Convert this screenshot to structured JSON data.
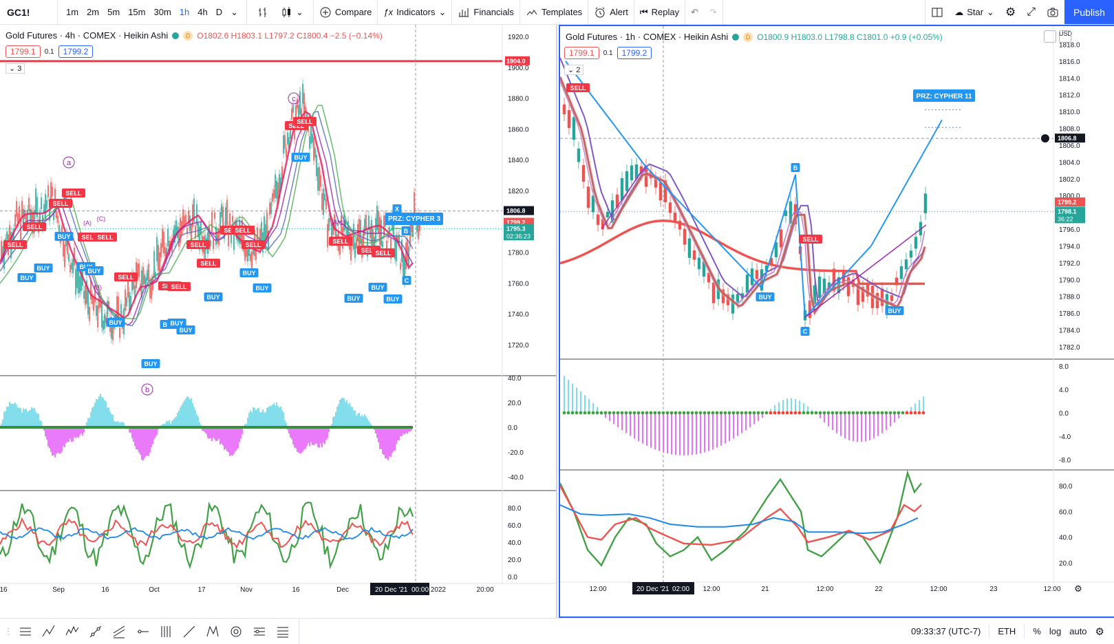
{
  "toolbar": {
    "symbol": "GC1!",
    "timeframes": [
      "1m",
      "2m",
      "5m",
      "15m",
      "30m",
      "1h",
      "4h",
      "D"
    ],
    "active_timeframe": "1h",
    "compare": "Compare",
    "indicators": "Indicators",
    "financials": "Financials",
    "templates": "Templates",
    "alert": "Alert",
    "replay": "Replay",
    "star": "Star",
    "publish": "Publish"
  },
  "left": {
    "title": "Gold Futures · 4h · COMEX · Heikin Ashi",
    "d_badge": "D",
    "ohlc": "O1802.6 H1803.1 L1797.2 C1800.4 −2.5 (−0.14%)",
    "bid": "1799.1",
    "spread": "0.1",
    "ask": "1799.2",
    "collapse_count": "3",
    "price_ticks": [
      "1920.0",
      "1900.0",
      "1880.0",
      "1860.0",
      "1840.0",
      "1820.0",
      "1800.0",
      "1780.0",
      "1760.0",
      "1740.0",
      "1720.0"
    ],
    "price_labels": {
      "line": "1904.0",
      "cursor": "1806.8",
      "last": "1799.2",
      "ma": "1795.3",
      "countdown": "02:36:23"
    },
    "osc1_ticks": [
      "40.0",
      "20.0",
      "0.0",
      "-20.0",
      "-40.0"
    ],
    "osc2_ticks": [
      "80.0",
      "60.0",
      "40.0",
      "20.0",
      "0.0"
    ],
    "time_ticks": [
      "16",
      "Sep",
      "16",
      "Oct",
      "17",
      "Nov",
      "16",
      "Dec",
      "2022",
      "20:00"
    ],
    "time_cursor": "20 Dec '21",
    "time_cursor2": "00:00",
    "wave_labels": [
      "a",
      "b",
      "c"
    ],
    "small_labels": [
      "(A)",
      "(B)",
      "(C)",
      "(A)",
      "(C)"
    ],
    "pattern": {
      "label": "PRZ: CYPHER 3",
      "x": "X",
      "b": "B",
      "c": "C"
    },
    "sell": "SELL",
    "buy": "BUY"
  },
  "right": {
    "title": "Gold Futures · 1h · COMEX · Heikin Ashi",
    "d_badge": "D",
    "ohlc": "O1800.9 H1803.0 L1798.8 C1801.0 +0.9 (+0.05%)",
    "bid": "1799.1",
    "spread": "0.1",
    "ask": "1799.2",
    "collapse_count": "2",
    "currency": "USD",
    "price_ticks": [
      "1820.0",
      "1818.0",
      "1816.0",
      "1814.0",
      "1812.0",
      "1810.0",
      "1808.0",
      "1806.0",
      "1804.0",
      "1802.0",
      "1800.0",
      "1798.0",
      "1796.0",
      "1794.0",
      "1792.0",
      "1790.0",
      "1788.0",
      "1786.0",
      "1784.0",
      "1782.0"
    ],
    "price_labels": {
      "cursor": "1806.8",
      "last": "1799.2",
      "ma": "1798.1",
      "countdown": "36:22"
    },
    "osc1_ticks": [
      "8.0",
      "4.0",
      "0.0",
      "-4.0",
      "-8.0"
    ],
    "osc2_ticks": [
      "80.0",
      "60.0",
      "40.0",
      "20.0"
    ],
    "time_ticks": [
      "12:00",
      "12:00",
      "21",
      "12:00",
      "22",
      "12:00",
      "23",
      "12:00"
    ],
    "time_cursor": "20 Dec '21",
    "time_cursor2": "02:00",
    "pattern": {
      "label": "PRZ: CYPHER 11",
      "b": "B",
      "c": "C"
    },
    "sell": "SELL",
    "buy": "BUY"
  },
  "bottombar": {
    "clock": "09:33:37 (UTC-7)",
    "session": "ETH",
    "percent": "%",
    "log": "log",
    "auto": "auto"
  },
  "colors": {
    "accent": "#2962ff",
    "up": "#26a69a",
    "down": "#ef5350",
    "sell_label": "#f23645",
    "buy_label": "#2196f3",
    "hist_up": "#4dd0e1",
    "hist_down": "#e040fb"
  }
}
